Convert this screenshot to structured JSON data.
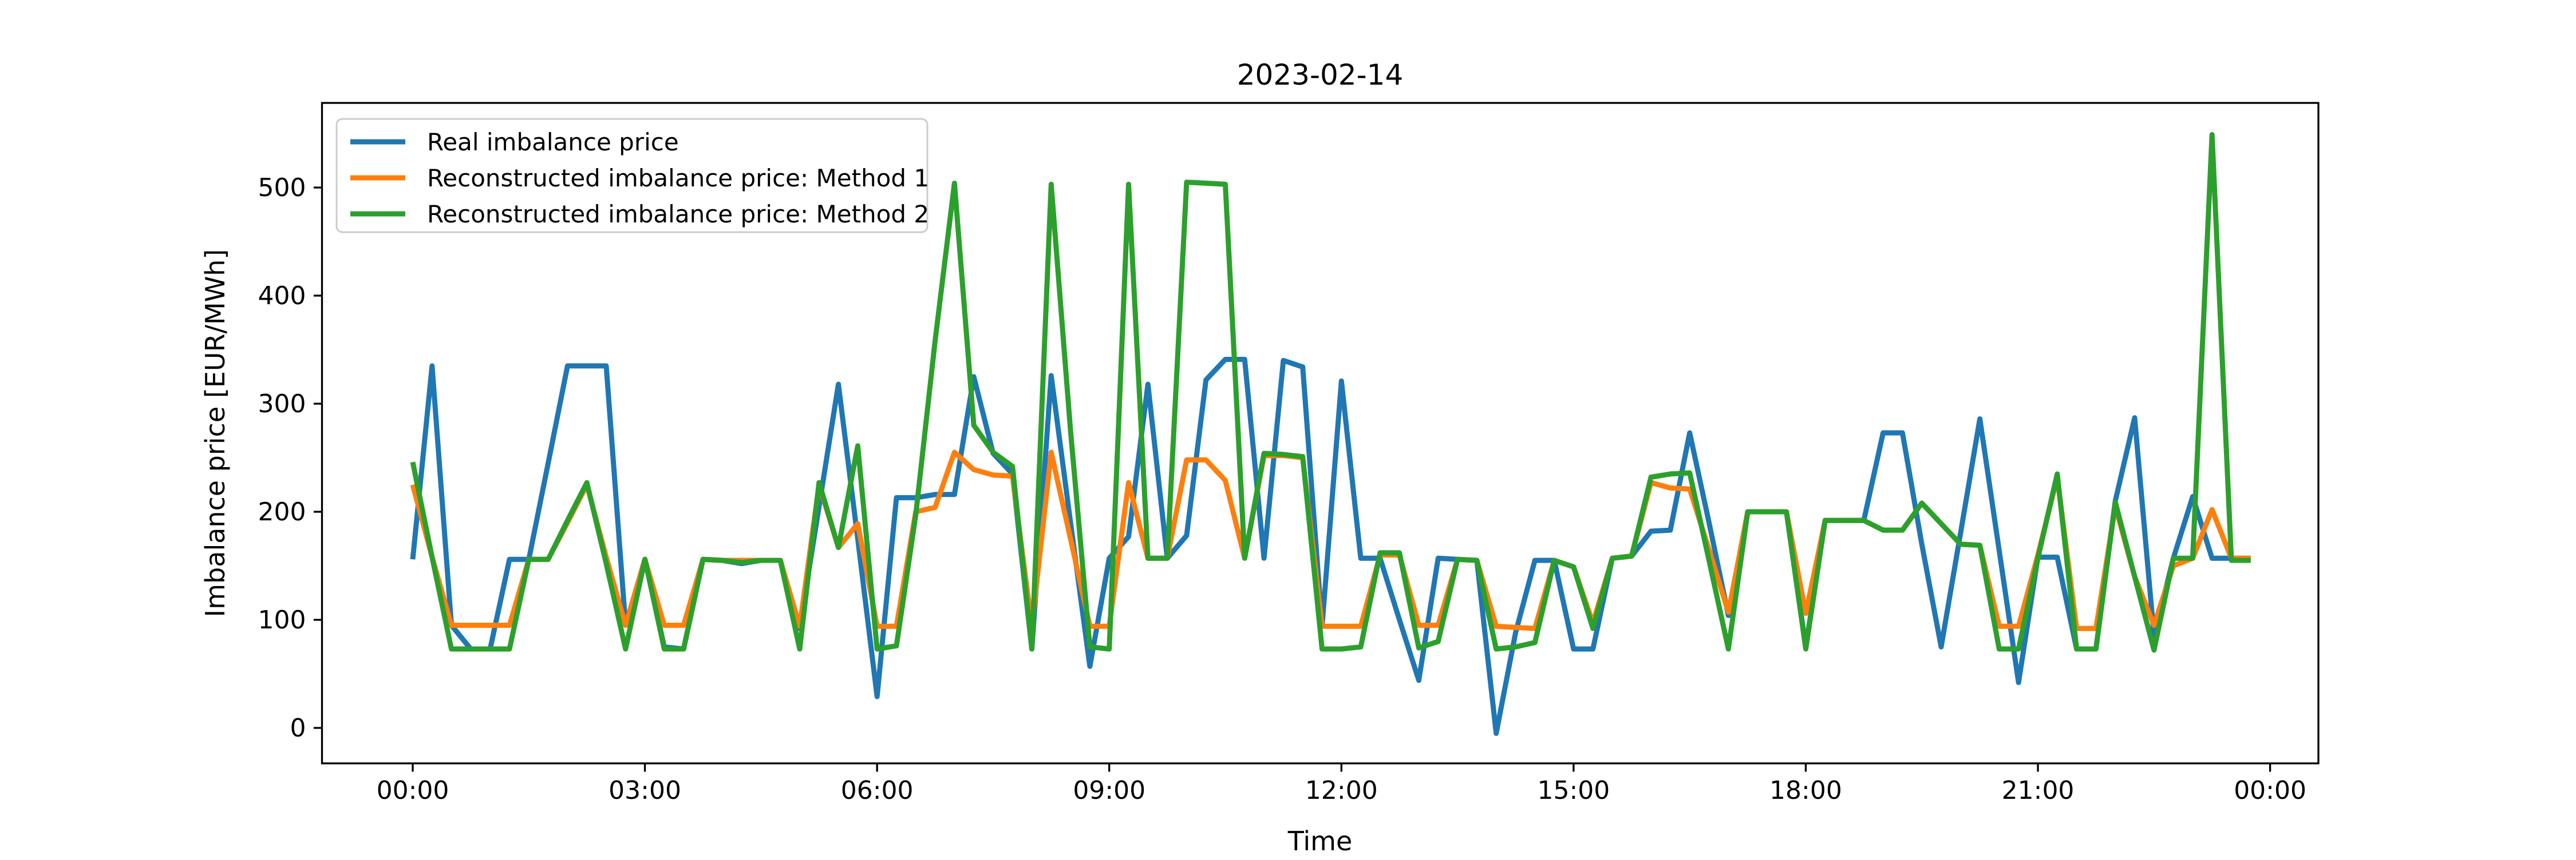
{
  "figure": {
    "title": "2023-02-14",
    "background_color": "#ffffff"
  },
  "axes": {
    "xlabel": "Time",
    "ylabel": "Imbalance price [EUR/MWh]",
    "x_tick_labels": [
      "00:00",
      "03:00",
      "06:00",
      "09:00",
      "12:00",
      "15:00",
      "18:00",
      "21:00",
      "00:00"
    ],
    "x_tick_indices": [
      0,
      12,
      24,
      36,
      48,
      60,
      72,
      84,
      96
    ],
    "y_tick_labels": [
      "0",
      "100",
      "200",
      "300",
      "400",
      "500"
    ],
    "y_tick_values": [
      0,
      100,
      200,
      300,
      400,
      500
    ],
    "spine_color": "#000000"
  },
  "legend": {
    "position": "upper-left",
    "border_color": "#cccccc",
    "items": [
      {
        "label": "Real imbalance price",
        "color": "#1f77b4"
      },
      {
        "label": "Reconstructed imbalance price: Method 1",
        "color": "#ff7f0e"
      },
      {
        "label": "Reconstructed imbalance price: Method 2",
        "color": "#2ca02c"
      }
    ]
  },
  "chart_data": {
    "type": "line",
    "title": "2023-02-14",
    "xlabel": "Time",
    "ylabel": "Imbalance price [EUR/MWh]",
    "ylim": [
      -33,
      578
    ],
    "grid": false,
    "legend_position": "upper left",
    "x": [
      "00:00",
      "00:15",
      "00:30",
      "00:45",
      "01:00",
      "01:15",
      "01:30",
      "01:45",
      "02:00",
      "02:15",
      "02:30",
      "02:45",
      "03:00",
      "03:15",
      "03:30",
      "03:45",
      "04:00",
      "04:15",
      "04:30",
      "04:45",
      "05:00",
      "05:15",
      "05:30",
      "05:45",
      "06:00",
      "06:15",
      "06:30",
      "06:45",
      "07:00",
      "07:15",
      "07:30",
      "07:45",
      "08:00",
      "08:15",
      "08:30",
      "08:45",
      "09:00",
      "09:15",
      "09:30",
      "09:45",
      "10:00",
      "10:15",
      "10:30",
      "10:45",
      "11:00",
      "11:15",
      "11:30",
      "11:45",
      "12:00",
      "12:15",
      "12:30",
      "12:45",
      "13:00",
      "13:15",
      "13:30",
      "13:45",
      "14:00",
      "14:15",
      "14:30",
      "14:45",
      "15:00",
      "15:15",
      "15:30",
      "15:45",
      "16:00",
      "16:15",
      "16:30",
      "16:45",
      "17:00",
      "17:15",
      "17:30",
      "17:45",
      "18:00",
      "18:15",
      "18:30",
      "18:45",
      "19:00",
      "19:15",
      "19:30",
      "19:45",
      "20:00",
      "20:15",
      "20:30",
      "20:45",
      "21:00",
      "21:15",
      "21:30",
      "21:45",
      "22:00",
      "22:15",
      "22:30",
      "22:45",
      "23:00",
      "23:15",
      "23:30",
      "23:45"
    ],
    "series": [
      {
        "name": "Real imbalance price",
        "color": "#1f77b4",
        "values": [
          156,
          335,
          95,
          73,
          73,
          156,
          156,
          245,
          335,
          335,
          335,
          95,
          156,
          75,
          73,
          156,
          155,
          152,
          155,
          155,
          92,
          205,
          318,
          175,
          29,
          213,
          213,
          216,
          216,
          325,
          254,
          235,
          73,
          326,
          190,
          57,
          157,
          177,
          318,
          157,
          178,
          322,
          341,
          341,
          157,
          340,
          334,
          94,
          321,
          157,
          157,
          100,
          44,
          157,
          156,
          155,
          -5,
          88,
          155,
          155,
          73,
          73,
          157,
          159,
          182,
          183,
          273,
          190,
          104,
          200,
          200,
          200,
          75,
          192,
          192,
          192,
          273,
          273,
          170,
          75,
          180,
          286,
          164,
          42,
          158,
          158,
          73,
          73,
          210,
          287,
          85,
          157,
          214,
          157,
          157,
          157
        ]
      },
      {
        "name": "Reconstructed imbalance price: Method 1",
        "color": "#ff7f0e",
        "values": [
          225,
          158,
          95,
          95,
          95,
          95,
          156,
          156,
          190,
          225,
          158,
          95,
          156,
          95,
          95,
          156,
          155,
          155,
          155,
          155,
          94,
          225,
          167,
          189,
          94,
          94,
          200,
          204,
          255,
          239,
          234,
          233,
          94,
          255,
          175,
          94,
          94,
          227,
          157,
          157,
          248,
          248,
          229,
          157,
          252,
          252,
          250,
          94,
          94,
          94,
          160,
          160,
          95,
          95,
          156,
          155,
          94,
          93,
          92,
          155,
          149,
          97,
          157,
          159,
          227,
          222,
          221,
          165,
          107,
          200,
          200,
          200,
          106,
          192,
          192,
          192,
          183,
          183,
          208,
          189,
          170,
          169,
          94,
          94,
          160,
          232,
          92,
          92,
          205,
          140,
          95,
          150,
          157,
          202,
          157,
          157
        ]
      },
      {
        "name": "Reconstructed imbalance price: Method 2",
        "color": "#2ca02c",
        "values": [
          246,
          158,
          73,
          73,
          73,
          73,
          156,
          156,
          192,
          227,
          152,
          73,
          156,
          73,
          73,
          156,
          155,
          153,
          155,
          155,
          73,
          227,
          167,
          261,
          73,
          76,
          197,
          358,
          504,
          280,
          255,
          242,
          73,
          503,
          275,
          75,
          73,
          503,
          157,
          157,
          505,
          504,
          503,
          157,
          254,
          253,
          251,
          73,
          73,
          75,
          162,
          162,
          74,
          80,
          156,
          155,
          73,
          75,
          79,
          155,
          149,
          92,
          157,
          159,
          232,
          235,
          236,
          155,
          73,
          200,
          200,
          200,
          73,
          192,
          192,
          192,
          183,
          183,
          208,
          189,
          170,
          169,
          73,
          73,
          157,
          235,
          73,
          73,
          209,
          140,
          72,
          157,
          157,
          549,
          155,
          155
        ]
      }
    ]
  }
}
